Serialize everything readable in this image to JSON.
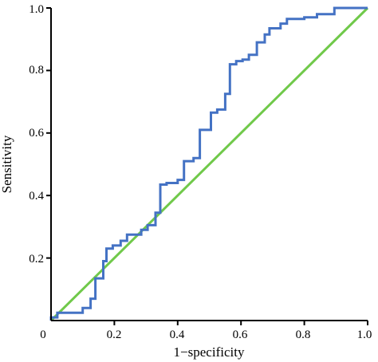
{
  "chart_data": {
    "type": "line",
    "title": "",
    "xlabel": "1−specificity",
    "ylabel": "Sensitivity",
    "xlim": [
      0,
      1
    ],
    "ylim": [
      0,
      1
    ],
    "grid": false,
    "origin_label": "0",
    "x_ticks": [
      "0.2",
      "0.4",
      "0.6",
      "0.8",
      "1.0"
    ],
    "x_tick_values": [
      0.2,
      0.4,
      0.6,
      0.8,
      1.0
    ],
    "y_ticks": [
      "0.2",
      "0.4",
      "0.6",
      "0.8",
      "1.0"
    ],
    "y_tick_values": [
      0.2,
      0.4,
      0.6,
      0.8,
      1.0
    ],
    "colors": {
      "roc": "#4472c4",
      "reference": "#70c94a"
    },
    "series": [
      {
        "x": [
          0.0,
          0.0,
          0.02,
          0.02,
          0.1,
          0.1,
          0.125,
          0.125,
          0.14,
          0.14,
          0.165,
          0.165,
          0.175,
          0.175,
          0.195,
          0.195,
          0.22,
          0.22,
          0.24,
          0.24,
          0.285,
          0.285,
          0.305,
          0.305,
          0.33,
          0.33,
          0.345,
          0.345,
          0.365,
          0.365,
          0.4,
          0.4,
          0.42,
          0.42,
          0.45,
          0.45,
          0.47,
          0.47,
          0.505,
          0.505,
          0.525,
          0.525,
          0.55,
          0.55,
          0.565,
          0.565,
          0.585,
          0.585,
          0.605,
          0.605,
          0.625,
          0.625,
          0.65,
          0.65,
          0.675,
          0.675,
          0.69,
          0.69,
          0.725,
          0.725,
          0.745,
          0.745,
          0.8,
          0.8,
          0.84,
          0.84,
          0.895,
          0.895,
          0.93,
          0.93,
          1.0
        ],
        "y": [
          0.0,
          0.01,
          0.01,
          0.025,
          0.025,
          0.04,
          0.04,
          0.07,
          0.07,
          0.135,
          0.135,
          0.19,
          0.19,
          0.23,
          0.23,
          0.24,
          0.24,
          0.255,
          0.255,
          0.275,
          0.275,
          0.29,
          0.29,
          0.305,
          0.305,
          0.345,
          0.345,
          0.435,
          0.435,
          0.44,
          0.44,
          0.45,
          0.45,
          0.51,
          0.51,
          0.52,
          0.52,
          0.61,
          0.61,
          0.665,
          0.665,
          0.675,
          0.675,
          0.725,
          0.725,
          0.82,
          0.82,
          0.83,
          0.83,
          0.835,
          0.835,
          0.85,
          0.85,
          0.89,
          0.89,
          0.915,
          0.915,
          0.935,
          0.935,
          0.95,
          0.95,
          0.965,
          0.965,
          0.97,
          0.97,
          0.98,
          0.98,
          1.0,
          1.0,
          1.0,
          1.0
        ]
      },
      {
        "x": [
          0.0,
          1.0
        ],
        "y": [
          0.0,
          1.0
        ]
      }
    ]
  }
}
